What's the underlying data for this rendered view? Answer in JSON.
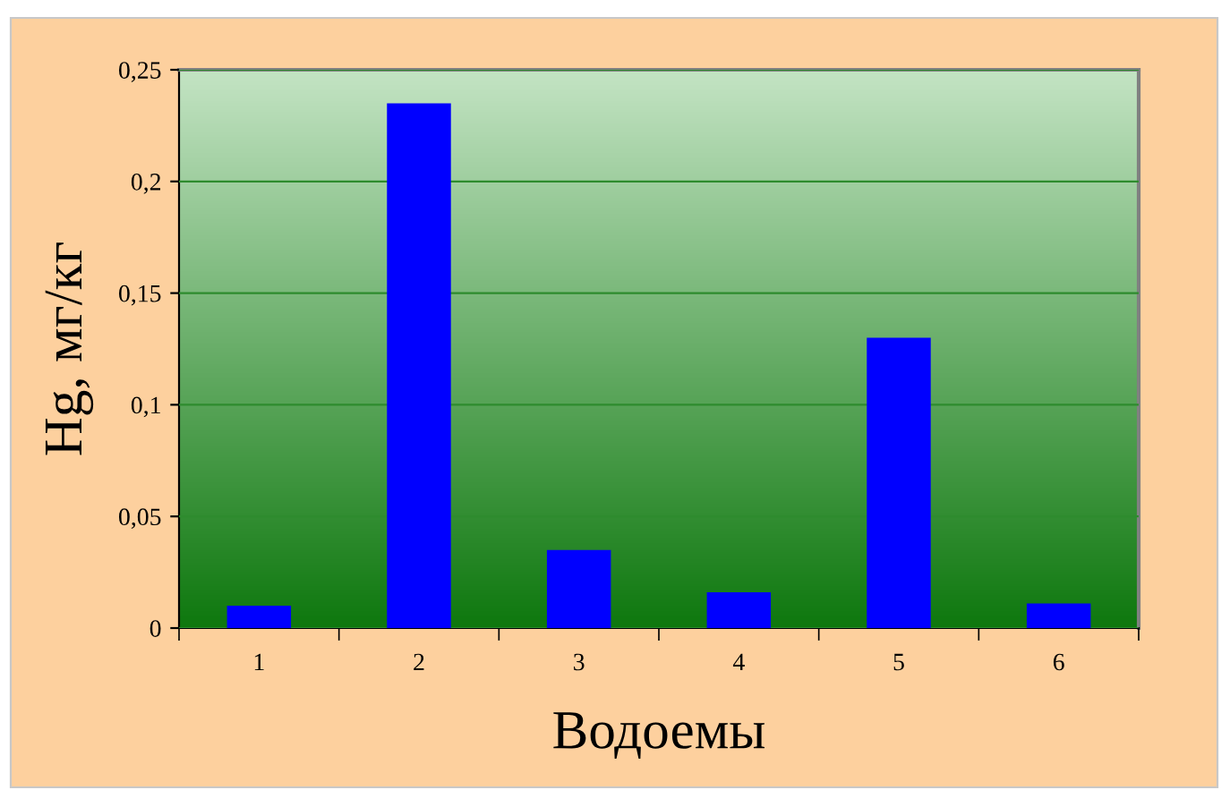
{
  "chart_data": {
    "type": "bar",
    "xlabel": "Водоемы",
    "ylabel": "Hg, мг/кг",
    "categories": [
      "1",
      "2",
      "3",
      "4",
      "5",
      "6"
    ],
    "values": [
      0.01,
      0.235,
      0.035,
      0.016,
      0.13,
      0.011
    ],
    "color": "#0000ff",
    "ylim": [
      0,
      0.25
    ],
    "yticks": [
      0,
      {
        "value": 0.05,
        "label": "0,05"
      },
      {
        "value": 0.1,
        "label": "0,1"
      },
      {
        "value": 0.15,
        "label": "0,15"
      },
      {
        "value": 0.2,
        "label": "0,2"
      },
      {
        "value": 0.25,
        "label": "0,25"
      }
    ],
    "grid": "y",
    "legend": false
  }
}
